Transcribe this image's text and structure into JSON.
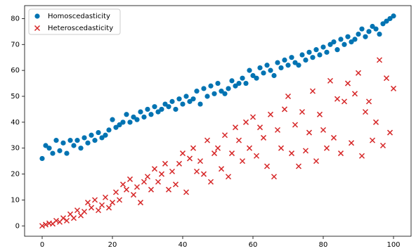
{
  "chart_data": {
    "type": "scatter",
    "x": [
      0,
      1,
      2,
      3,
      4,
      5,
      6,
      7,
      8,
      9,
      10,
      11,
      12,
      13,
      14,
      15,
      16,
      17,
      18,
      19,
      20,
      21,
      22,
      23,
      24,
      25,
      26,
      27,
      28,
      29,
      30,
      31,
      32,
      33,
      34,
      35,
      36,
      37,
      38,
      39,
      40,
      41,
      42,
      43,
      44,
      45,
      46,
      47,
      48,
      49,
      50,
      51,
      52,
      53,
      54,
      55,
      56,
      57,
      58,
      59,
      60,
      61,
      62,
      63,
      64,
      65,
      66,
      67,
      68,
      69,
      70,
      71,
      72,
      73,
      74,
      75,
      76,
      77,
      78,
      79,
      80,
      81,
      82,
      83,
      84,
      85,
      86,
      87,
      88,
      89,
      90,
      91,
      92,
      93,
      94,
      95,
      96,
      97,
      98,
      99,
      100
    ],
    "series": [
      {
        "name": "Homoscedasticity",
        "color": "#0173b2",
        "marker": "o",
        "values": [
          26,
          31,
          30,
          28,
          33,
          29,
          32,
          28,
          33,
          31,
          33,
          30,
          34,
          32,
          35,
          33,
          36,
          34,
          35,
          37,
          41,
          38,
          39,
          40,
          43,
          40,
          42,
          41,
          44,
          42,
          45,
          43,
          46,
          44,
          45,
          47,
          46,
          48,
          45,
          49,
          47,
          50,
          48,
          49,
          52,
          47,
          53,
          50,
          54,
          51,
          55,
          52,
          51,
          53,
          56,
          54,
          55,
          57,
          55,
          60,
          58,
          57,
          61,
          59,
          62,
          60,
          58,
          63,
          61,
          64,
          62,
          65,
          63,
          62,
          66,
          64,
          67,
          65,
          68,
          66,
          69,
          67,
          70,
          71,
          68,
          72,
          70,
          73,
          71,
          72,
          74,
          76,
          73,
          75,
          77,
          76,
          74,
          78,
          79,
          80,
          81
        ]
      },
      {
        "name": "Heteroscedasticity",
        "color": "#d62728",
        "marker": "x",
        "values": [
          0,
          0.5,
          1,
          0.8,
          2,
          1.5,
          3,
          2,
          4.5,
          3,
          6,
          4,
          5.5,
          9,
          7,
          10,
          6,
          8,
          11,
          7,
          9,
          13,
          10,
          16,
          14,
          18,
          12,
          15,
          9,
          17,
          19,
          14,
          22,
          17,
          20,
          24,
          14,
          21,
          16,
          24,
          28,
          13,
          26,
          30,
          21,
          25,
          20,
          33,
          17,
          28,
          30,
          22,
          35,
          19,
          28,
          38,
          33,
          25,
          40,
          30,
          42,
          27,
          38,
          34,
          23,
          43,
          19,
          37,
          30,
          45,
          50,
          28,
          39,
          23,
          44,
          29,
          36,
          52,
          25,
          43,
          37,
          30,
          56,
          34,
          49,
          28,
          48,
          55,
          32,
          51,
          59,
          27,
          44,
          48,
          33,
          40,
          64,
          31,
          57,
          36,
          53
        ]
      }
    ],
    "xlim": [
      -5,
      105
    ],
    "ylim": [
      -4,
      85
    ],
    "xticks": [
      0,
      20,
      40,
      60,
      80,
      100
    ],
    "yticks": [
      0,
      10,
      20,
      30,
      40,
      50,
      60,
      70,
      80
    ],
    "legend": "upper left"
  }
}
